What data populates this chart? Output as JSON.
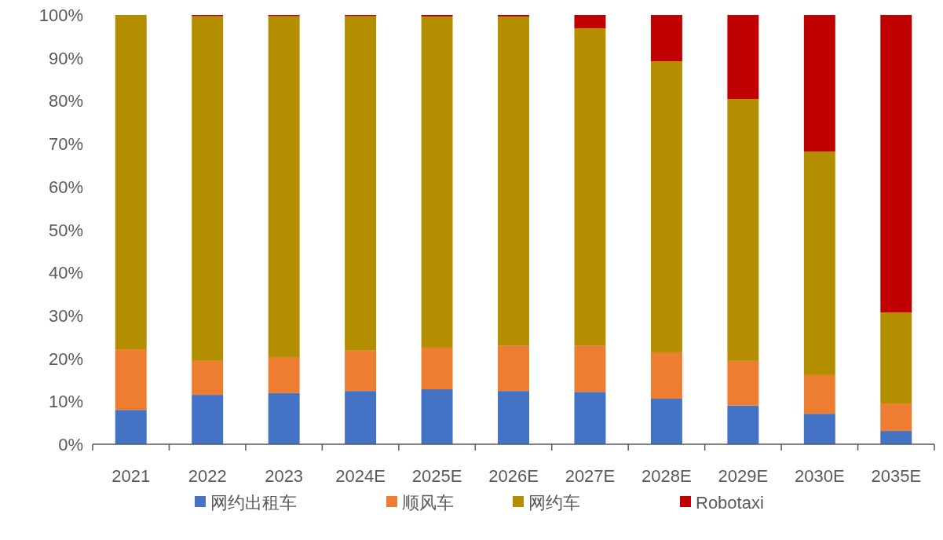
{
  "chart_data": {
    "type": "bar",
    "stacked": true,
    "legend": "bottom",
    "categories": [
      "2021",
      "2022",
      "2023",
      "2024E",
      "2025E",
      "2026E",
      "2027E",
      "2028E",
      "2029E",
      "2030E",
      "2035E"
    ],
    "ylim": [
      0,
      100
    ],
    "yticks": [
      {
        "value": 0,
        "label": "0%"
      },
      {
        "value": 10,
        "label": "10%"
      },
      {
        "value": 20,
        "label": "20%"
      },
      {
        "value": 30,
        "label": "30%"
      },
      {
        "value": 40,
        "label": "40%"
      },
      {
        "value": 50,
        "label": "50%"
      },
      {
        "value": 60,
        "label": "60%"
      },
      {
        "value": 70,
        "label": "70%"
      },
      {
        "value": 80,
        "label": "80%"
      },
      {
        "value": 90,
        "label": "90%"
      },
      {
        "value": 100,
        "label": "100%"
      }
    ],
    "series": [
      {
        "name": "网约出租车",
        "color": "#4472c4",
        "values": [
          8.0,
          11.5,
          11.9,
          12.4,
          12.8,
          12.4,
          12.2,
          10.6,
          9.0,
          7.1,
          3.1
        ]
      },
      {
        "name": "顺风车",
        "color": "#ed7d31",
        "values": [
          14.1,
          7.9,
          8.4,
          9.4,
          9.7,
          10.6,
          10.8,
          10.8,
          10.4,
          9.0,
          6.4
        ]
      },
      {
        "name": "网约车",
        "color": "#b38f00",
        "values": [
          77.9,
          80.3,
          79.4,
          77.9,
          77.1,
          76.6,
          73.9,
          67.8,
          61.0,
          52.1,
          21.2
        ]
      },
      {
        "name": "Robotaxi",
        "color": "#c00000",
        "values": [
          0,
          0.3,
          0.3,
          0.3,
          0.4,
          0.4,
          3.1,
          10.8,
          19.6,
          31.8,
          69.3
        ]
      }
    ]
  }
}
